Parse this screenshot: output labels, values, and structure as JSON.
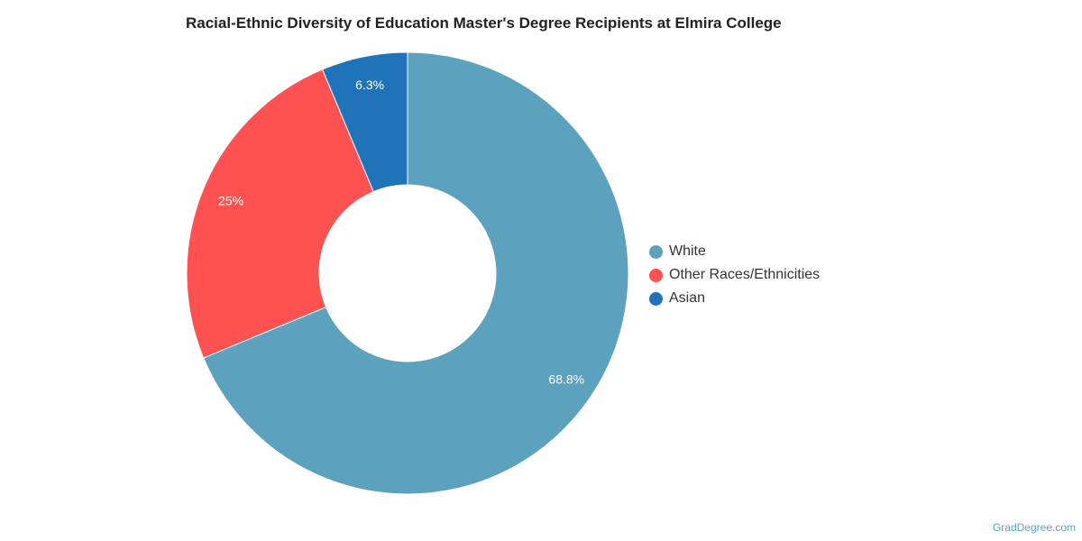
{
  "chart_data": {
    "type": "pie",
    "title": "Racial-Ethnic Diversity of Education Master's Degree Recipients at Elmira College",
    "categories": [
      "White",
      "Other Races/Ethnicities",
      "Asian"
    ],
    "values": [
      68.8,
      25,
      6.3
    ],
    "data_labels": [
      "68.8%",
      "25%",
      "6.3%"
    ],
    "colors": [
      "#5ca2bf",
      "#fe5151",
      "#1f73b9"
    ],
    "donut": true,
    "legend_position": "right"
  },
  "watermark": "GradDegree.com"
}
